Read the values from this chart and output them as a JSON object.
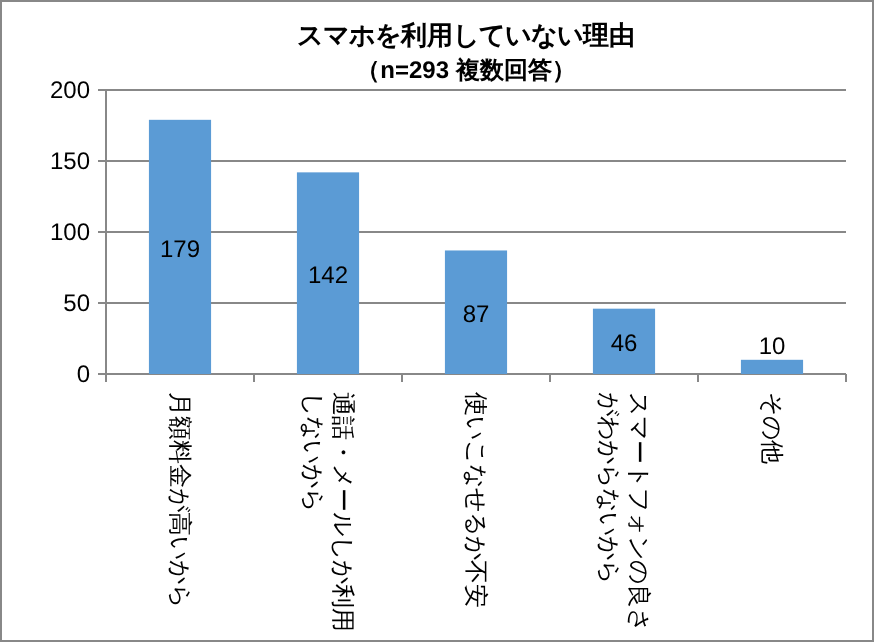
{
  "chart_data": {
    "type": "bar",
    "title": "スマホを利用していない理由",
    "subtitle": "（n=293 複数回答）",
    "categories": [
      "月額料金が高いから",
      "通話・メールしか利用しないから",
      "使いこなせるか不安",
      "スマートフォンの良さがわからないから",
      "その他"
    ],
    "values": [
      179,
      142,
      87,
      46,
      10
    ],
    "color": "#5b9bd5",
    "ylim": [
      0,
      200
    ],
    "yticks": [
      0,
      50,
      100,
      150,
      200
    ],
    "grid": "y",
    "data_labels": true
  }
}
